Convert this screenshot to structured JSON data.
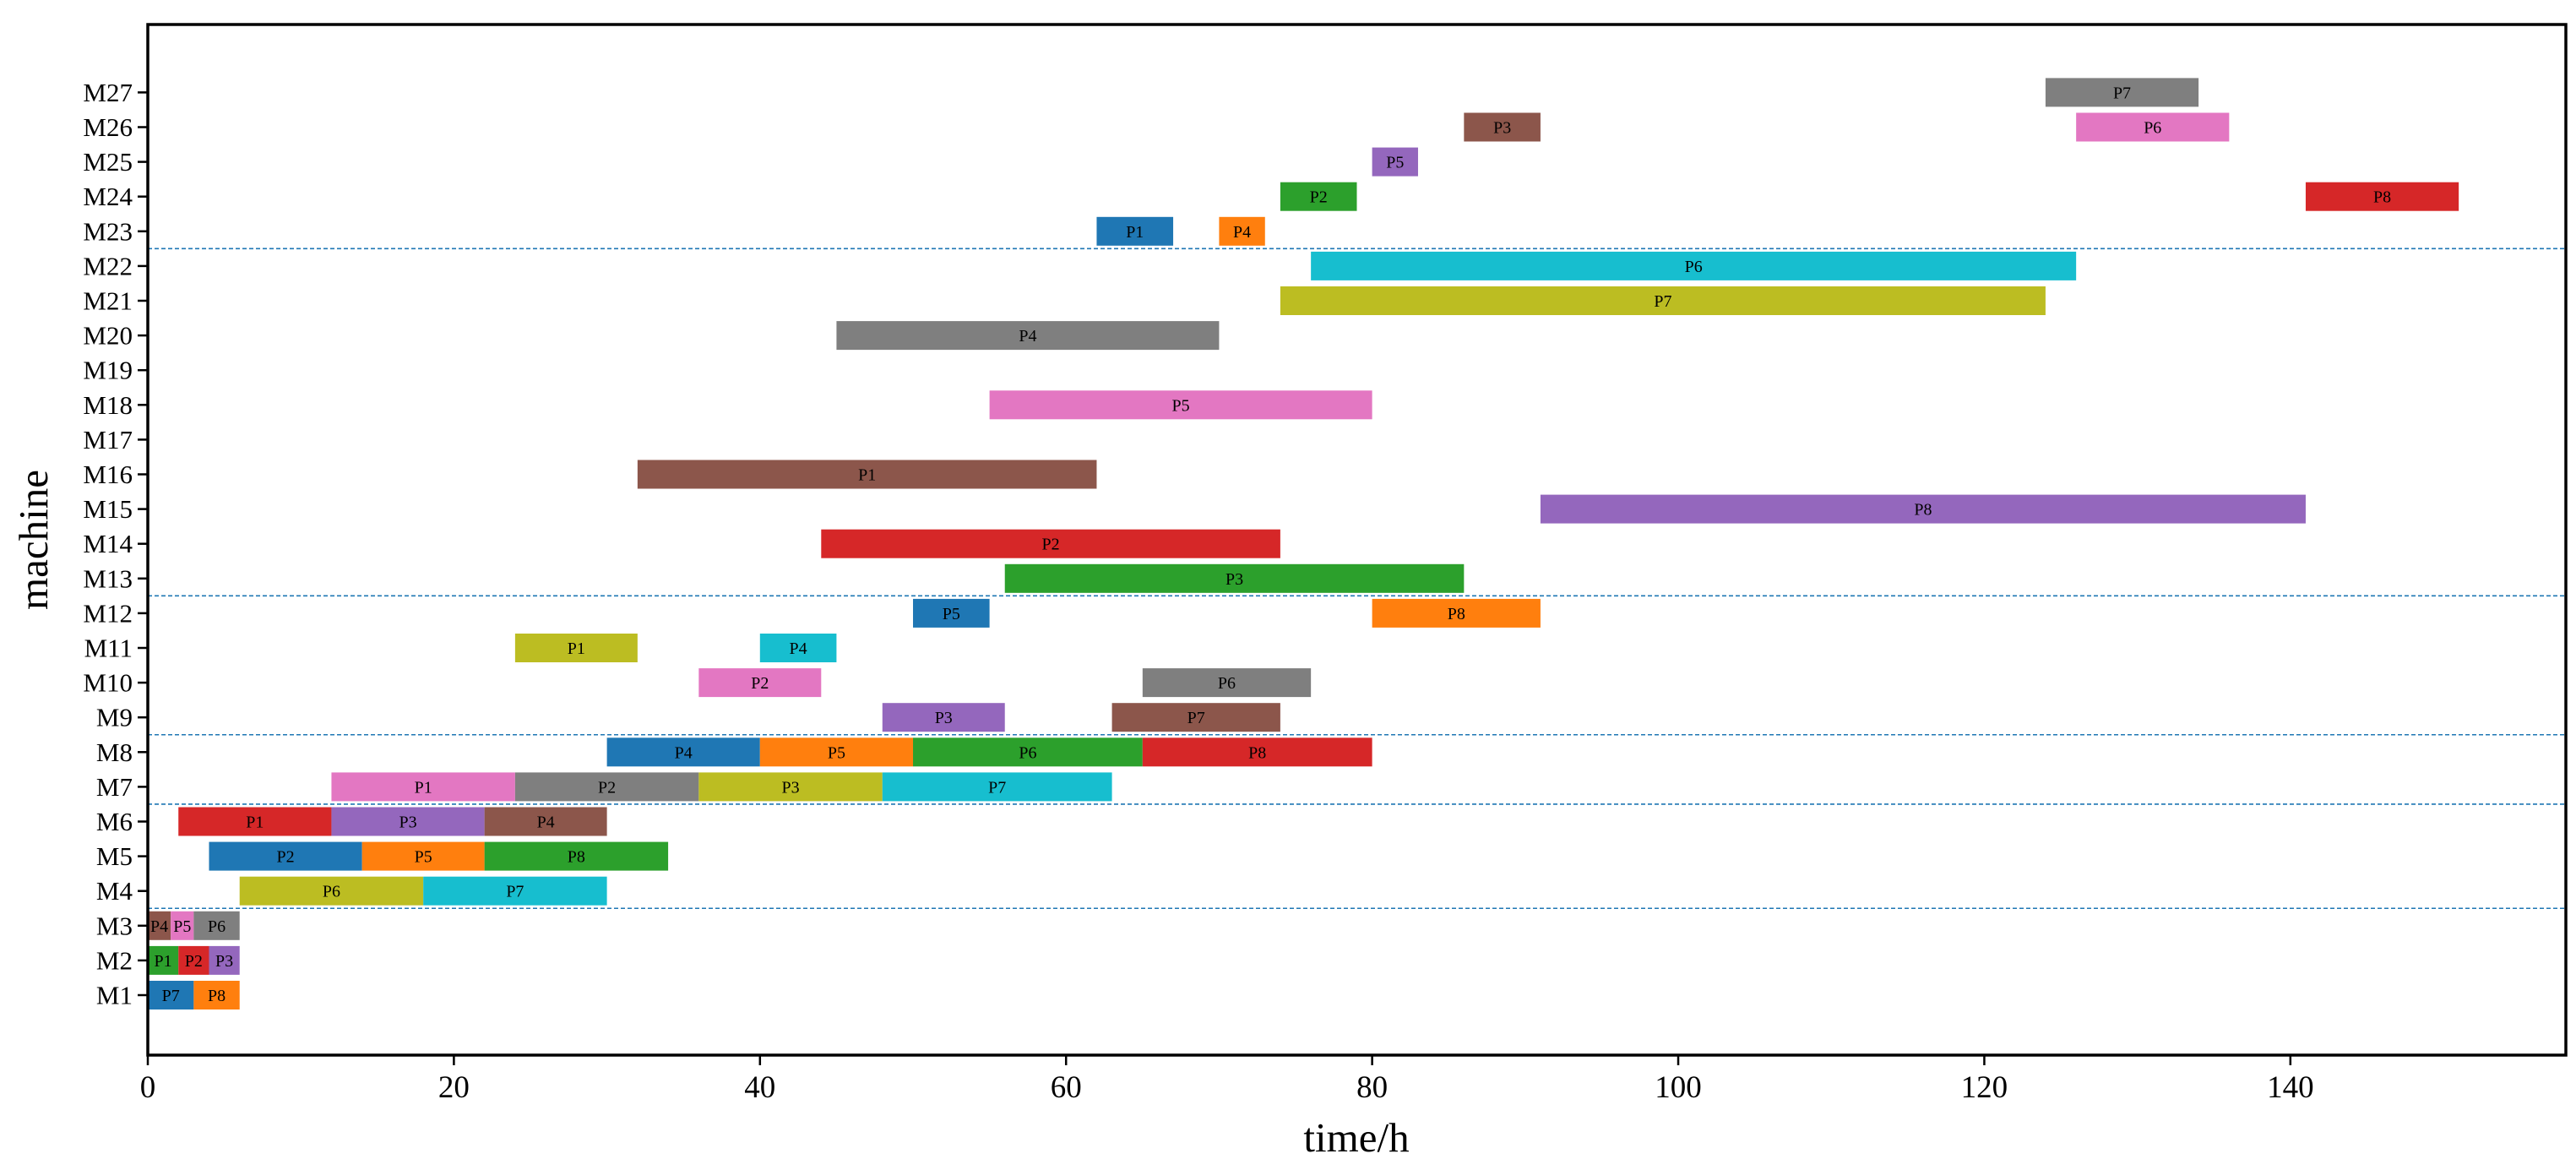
{
  "chart_data": {
    "type": "gantt",
    "title": "",
    "xlabel": "time/h",
    "ylabel": "machine",
    "xlim": [
      0,
      158
    ],
    "xticks": [
      0,
      20,
      40,
      60,
      80,
      100,
      120,
      140
    ],
    "machines": [
      "M1",
      "M2",
      "M3",
      "M4",
      "M5",
      "M6",
      "M7",
      "M8",
      "M9",
      "M10",
      "M11",
      "M12",
      "M13",
      "M14",
      "M15",
      "M16",
      "M17",
      "M18",
      "M19",
      "M20",
      "M21",
      "M22",
      "M23",
      "M24",
      "M25",
      "M26",
      "M27"
    ],
    "stage_separators_after": [
      "M3",
      "M6",
      "M8",
      "M12",
      "M22"
    ],
    "colors": {
      "P1": "#1f77b4",
      "P2": "#ff7f0e",
      "P3": "#2ca02c",
      "P4": "#d62728",
      "P5": "#9467bd",
      "P6": "#8c564b",
      "P7": "#e377c2",
      "P8": "#7f7f7f",
      "P9": "#bcbd22",
      "P10": "#17becf",
      "separator": "#1f77b4"
    },
    "tasks": [
      {
        "machine": "M1",
        "job": "P7",
        "start": 0,
        "end": 3,
        "color": "#1f77b4"
      },
      {
        "machine": "M1",
        "job": "P8",
        "start": 3,
        "end": 6,
        "color": "#ff7f0e"
      },
      {
        "machine": "M2",
        "job": "P1",
        "start": 0,
        "end": 2,
        "color": "#2ca02c"
      },
      {
        "machine": "M2",
        "job": "P2",
        "start": 2,
        "end": 4,
        "color": "#d62728"
      },
      {
        "machine": "M2",
        "job": "P3",
        "start": 4,
        "end": 6,
        "color": "#9467bd"
      },
      {
        "machine": "M3",
        "job": "P4",
        "start": 0,
        "end": 1.5,
        "color": "#8c564b"
      },
      {
        "machine": "M3",
        "job": "P5",
        "start": 1.5,
        "end": 3,
        "color": "#e377c2"
      },
      {
        "machine": "M3",
        "job": "P6",
        "start": 3,
        "end": 6,
        "color": "#7f7f7f"
      },
      {
        "machine": "M4",
        "job": "P6",
        "start": 6,
        "end": 18,
        "color": "#bcbd22"
      },
      {
        "machine": "M4",
        "job": "P7",
        "start": 18,
        "end": 30,
        "color": "#17becf"
      },
      {
        "machine": "M5",
        "job": "P2",
        "start": 4,
        "end": 14,
        "color": "#1f77b4"
      },
      {
        "machine": "M5",
        "job": "P5",
        "start": 14,
        "end": 22,
        "color": "#ff7f0e"
      },
      {
        "machine": "M5",
        "job": "P8",
        "start": 22,
        "end": 34,
        "color": "#2ca02c"
      },
      {
        "machine": "M6",
        "job": "P1",
        "start": 2,
        "end": 12,
        "color": "#d62728"
      },
      {
        "machine": "M6",
        "job": "P3",
        "start": 12,
        "end": 22,
        "color": "#9467bd"
      },
      {
        "machine": "M6",
        "job": "P4",
        "start": 22,
        "end": 30,
        "color": "#8c564b"
      },
      {
        "machine": "M7",
        "job": "P1",
        "start": 12,
        "end": 24,
        "color": "#e377c2"
      },
      {
        "machine": "M7",
        "job": "P2",
        "start": 24,
        "end": 36,
        "color": "#7f7f7f"
      },
      {
        "machine": "M7",
        "job": "P3",
        "start": 36,
        "end": 48,
        "color": "#bcbd22"
      },
      {
        "machine": "M7",
        "job": "P7",
        "start": 48,
        "end": 63,
        "color": "#17becf"
      },
      {
        "machine": "M8",
        "job": "P4",
        "start": 30,
        "end": 40,
        "color": "#1f77b4"
      },
      {
        "machine": "M8",
        "job": "P5",
        "start": 40,
        "end": 50,
        "color": "#ff7f0e"
      },
      {
        "machine": "M8",
        "job": "P6",
        "start": 50,
        "end": 65,
        "color": "#2ca02c"
      },
      {
        "machine": "M8",
        "job": "P8",
        "start": 65,
        "end": 80,
        "color": "#d62728"
      },
      {
        "machine": "M9",
        "job": "P3",
        "start": 48,
        "end": 56,
        "color": "#9467bd"
      },
      {
        "machine": "M9",
        "job": "P7",
        "start": 63,
        "end": 74,
        "color": "#8c564b"
      },
      {
        "machine": "M10",
        "job": "P2",
        "start": 36,
        "end": 44,
        "color": "#e377c2"
      },
      {
        "machine": "M10",
        "job": "P6",
        "start": 65,
        "end": 76,
        "color": "#7f7f7f"
      },
      {
        "machine": "M11",
        "job": "P1",
        "start": 24,
        "end": 32,
        "color": "#bcbd22"
      },
      {
        "machine": "M11",
        "job": "P4",
        "start": 40,
        "end": 45,
        "color": "#17becf"
      },
      {
        "machine": "M12",
        "job": "P5",
        "start": 50,
        "end": 55,
        "color": "#1f77b4"
      },
      {
        "machine": "M12",
        "job": "P8",
        "start": 80,
        "end": 91,
        "color": "#ff7f0e"
      },
      {
        "machine": "M13",
        "job": "P3",
        "start": 56,
        "end": 86,
        "color": "#2ca02c"
      },
      {
        "machine": "M14",
        "job": "P2",
        "start": 44,
        "end": 74,
        "color": "#d62728"
      },
      {
        "machine": "M15",
        "job": "P8",
        "start": 91,
        "end": 141,
        "color": "#9467bd"
      },
      {
        "machine": "M16",
        "job": "P1",
        "start": 32,
        "end": 62,
        "color": "#8c564b"
      },
      {
        "machine": "M18",
        "job": "P5",
        "start": 55,
        "end": 80,
        "color": "#e377c2"
      },
      {
        "machine": "M20",
        "job": "P4",
        "start": 45,
        "end": 70,
        "color": "#7f7f7f"
      },
      {
        "machine": "M21",
        "job": "P7",
        "start": 74,
        "end": 124,
        "color": "#bcbd22"
      },
      {
        "machine": "M22",
        "job": "P6",
        "start": 76,
        "end": 126,
        "color": "#17becf"
      },
      {
        "machine": "M23",
        "job": "P1",
        "start": 62,
        "end": 67,
        "color": "#1f77b4"
      },
      {
        "machine": "M23",
        "job": "P4",
        "start": 70,
        "end": 73,
        "color": "#ff7f0e"
      },
      {
        "machine": "M24",
        "job": "P2",
        "start": 74,
        "end": 79,
        "color": "#2ca02c"
      },
      {
        "machine": "M24",
        "job": "P8",
        "start": 141,
        "end": 151,
        "color": "#d62728"
      },
      {
        "machine": "M25",
        "job": "P5",
        "start": 80,
        "end": 83,
        "color": "#9467bd"
      },
      {
        "machine": "M26",
        "job": "P3",
        "start": 86,
        "end": 91,
        "color": "#8c564b"
      },
      {
        "machine": "M26",
        "job": "P6",
        "start": 126,
        "end": 136,
        "color": "#e377c2"
      },
      {
        "machine": "M27",
        "job": "P7",
        "start": 124,
        "end": 134,
        "color": "#7f7f7f"
      }
    ]
  }
}
